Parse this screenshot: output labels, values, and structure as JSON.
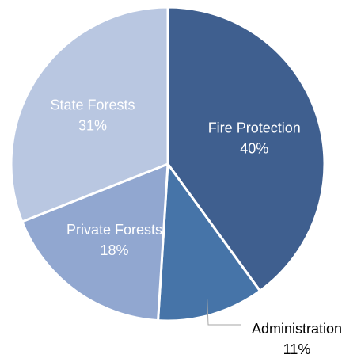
{
  "chart_data": {
    "type": "pie",
    "start_angle_deg": 0,
    "direction": "clockwise",
    "slices": [
      {
        "label": "Fire Protection",
        "value": 40,
        "value_label": "40%",
        "color": "#3f5f8f",
        "label_position": "inside"
      },
      {
        "label": "Administration",
        "value": 11,
        "value_label": "11%",
        "color": "#4674a8",
        "label_position": "outside"
      },
      {
        "label": "Private Forests",
        "value": 18,
        "value_label": "18%",
        "color": "#91a7d0",
        "label_position": "inside"
      },
      {
        "label": "State Forests",
        "value": 31,
        "value_label": "31%",
        "color": "#b9c7e1",
        "label_position": "inside"
      }
    ]
  }
}
